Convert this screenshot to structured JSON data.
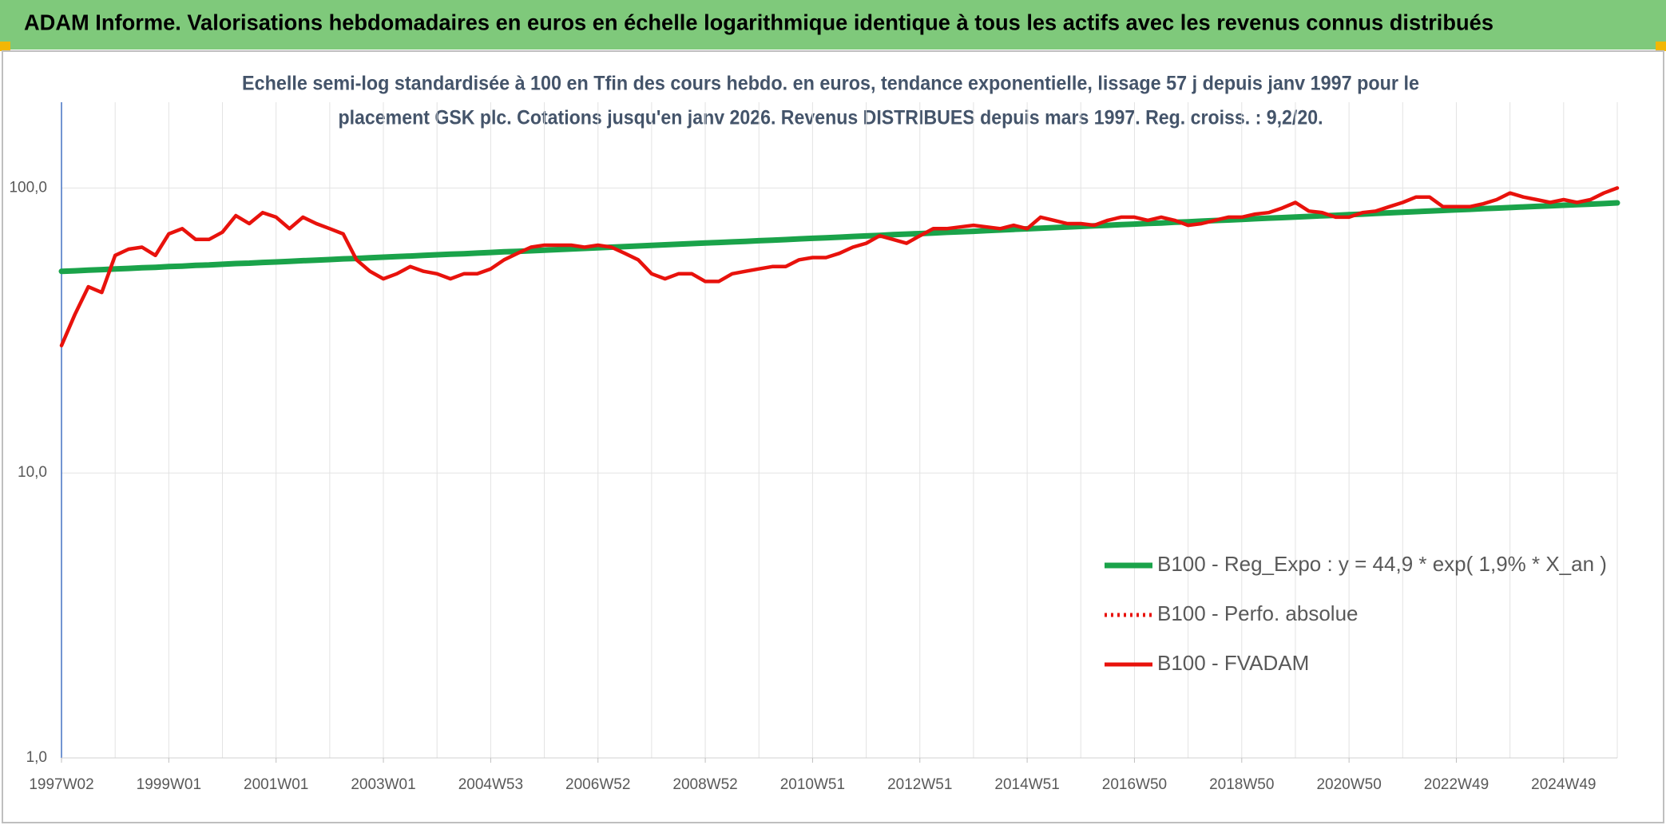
{
  "chart_data": {
    "type": "line",
    "title": "ADAM Informe. Valorisations hebdomadaires en euros en échelle logarithmique identique à tous les actifs avec les revenus connus distribués",
    "subtitle": [
      "Echelle semi-log standardisée à 100 en Tfin des cours hebdo. en euros, tendance exponentielle, lissage 57 j depuis janv 1997 pour le",
      "placement GSK plc. Cotations jusqu'en janv 2026. Revenus DISTRIBUES depuis mars 1997. Reg. croiss. : 9,2/20."
    ],
    "categories": [
      "1997W02",
      null,
      null,
      null,
      null,
      null,
      null,
      null,
      "1999W01",
      null,
      null,
      null,
      null,
      null,
      null,
      null,
      "2001W01",
      null,
      null,
      null,
      null,
      null,
      null,
      null,
      "2003W01",
      null,
      null,
      null,
      null,
      null,
      null,
      null,
      "2004W53",
      null,
      null,
      null,
      null,
      null,
      null,
      null,
      "2006W52",
      null,
      null,
      null,
      null,
      null,
      null,
      null,
      "2008W52",
      null,
      null,
      null,
      null,
      null,
      null,
      null,
      "2010W51",
      null,
      null,
      null,
      null,
      null,
      null,
      null,
      "2012W51",
      null,
      null,
      null,
      null,
      null,
      null,
      null,
      "2014W51",
      null,
      null,
      null,
      null,
      null,
      null,
      null,
      "2016W50",
      null,
      null,
      null,
      null,
      null,
      null,
      null,
      "2018W50",
      null,
      null,
      null,
      null,
      null,
      null,
      null,
      "2020W50",
      null,
      null,
      null,
      null,
      null,
      null,
      null,
      "2022W49",
      null,
      null,
      null,
      null,
      null,
      null,
      null,
      "2024W49",
      null,
      null,
      null,
      null
    ],
    "series": [
      {
        "name": "B100 - Reg_Expo : y = 44,9 * exp( 1,9% *  X_an )",
        "color": "#1aa34a",
        "style": "solid",
        "values": [
          51.0,
          51.2,
          51.5,
          51.7,
          52.0,
          52.2,
          52.5,
          52.7,
          53.0,
          53.2,
          53.5,
          53.7,
          54.0,
          54.3,
          54.5,
          54.8,
          55.0,
          55.3,
          55.6,
          55.8,
          56.1,
          56.4,
          56.6,
          56.9,
          57.2,
          57.5,
          57.7,
          58.0,
          58.3,
          58.6,
          58.8,
          59.1,
          59.4,
          59.7,
          59.9,
          60.2,
          60.5,
          60.8,
          61.1,
          61.4,
          61.7,
          62.0,
          62.3,
          62.6,
          62.9,
          63.2,
          63.5,
          63.8,
          64.1,
          64.4,
          64.7,
          65.0,
          65.3,
          65.6,
          65.9,
          66.3,
          66.6,
          66.9,
          67.2,
          67.6,
          67.9,
          68.2,
          68.6,
          68.9,
          69.2,
          69.5,
          69.9,
          70.2,
          70.5,
          70.9,
          71.2,
          71.6,
          71.9,
          72.3,
          72.6,
          73.0,
          73.3,
          73.7,
          74.0,
          74.4,
          74.7,
          75.1,
          75.4,
          75.8,
          76.1,
          76.5,
          76.9,
          77.2,
          77.6,
          78.0,
          78.4,
          78.7,
          79.1,
          79.5,
          79.9,
          80.2,
          80.6,
          81.0,
          81.4,
          81.8,
          82.2,
          82.6,
          83.0,
          83.4,
          83.8,
          84.2,
          84.6,
          85.0,
          85.4,
          85.8,
          86.2,
          86.6,
          87.0,
          87.4,
          87.8,
          88.2,
          88.7
        ]
      },
      {
        "name": "B100 - Perfo. absolue",
        "color": "#e8120c",
        "style": "dotted"
      },
      {
        "name": "B100 - FVADAM",
        "color": "#e8120c",
        "style": "solid",
        "values": [
          28,
          36,
          45,
          43,
          58,
          61,
          62,
          58,
          69,
          72,
          66,
          66,
          70,
          80,
          75,
          82,
          79,
          72,
          79,
          75,
          72,
          69,
          56,
          51,
          48,
          50,
          53,
          51,
          50,
          48,
          50,
          50,
          52,
          56,
          59,
          62,
          63,
          63,
          63,
          62,
          63,
          62,
          59,
          56,
          50,
          48,
          50,
          50,
          47,
          47,
          50,
          51,
          52,
          53,
          53,
          56,
          57,
          57,
          59,
          62,
          64,
          68,
          66,
          64,
          68,
          72,
          72,
          73,
          74,
          73,
          72,
          74,
          72,
          79,
          77,
          75,
          75,
          74,
          77,
          79,
          79,
          77,
          79,
          77,
          74,
          75,
          77,
          79,
          79,
          81,
          82,
          85,
          89,
          83,
          82,
          79,
          79,
          82,
          83,
          86,
          89,
          93,
          93,
          86,
          86,
          86,
          88,
          91,
          96,
          93,
          91,
          89,
          91,
          89,
          91,
          96,
          100
        ]
      }
    ],
    "ylim": [
      1,
      200
    ],
    "yticks": [
      {
        "value": 1,
        "label": "1,0"
      },
      {
        "value": 10,
        "label": "10,0"
      },
      {
        "value": 100,
        "label": "100,0"
      }
    ],
    "log_scale": true,
    "grid": true,
    "legend": "lower-right"
  }
}
